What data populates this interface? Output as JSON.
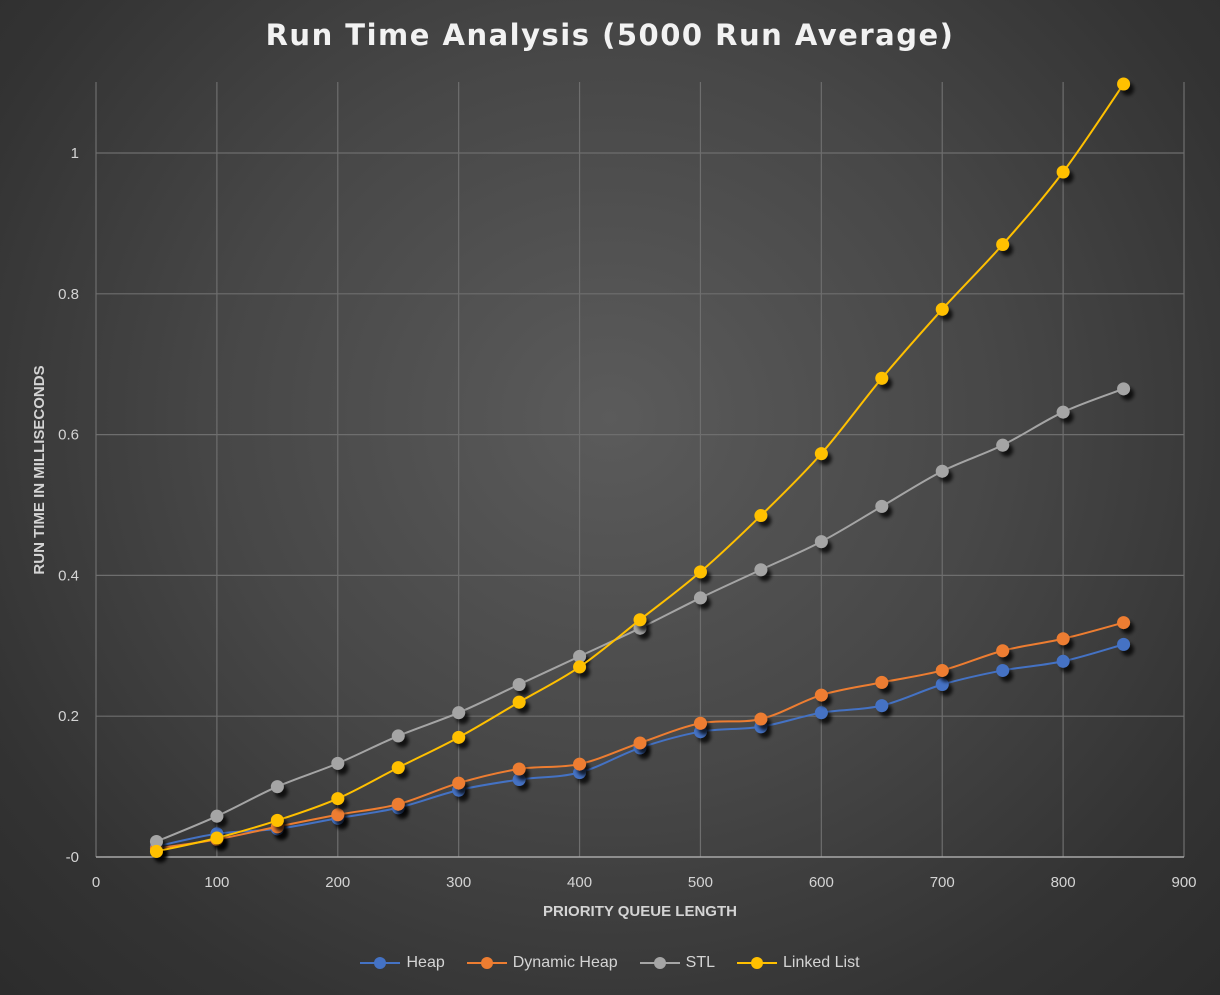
{
  "chart_data": {
    "type": "line",
    "title": "Run Time Analysis (5000 Run Average)",
    "xlabel": "PRIORITY QUEUE LENGTH",
    "ylabel": "RUN TIME IN MILLISECONDS",
    "xlim": [
      0,
      900
    ],
    "ylim": [
      0,
      1.0
    ],
    "x_ticks": [
      {
        "value": 0,
        "label": "0"
      },
      {
        "value": 100,
        "label": "100"
      },
      {
        "value": 200,
        "label": "200"
      },
      {
        "value": 300,
        "label": "300"
      },
      {
        "value": 400,
        "label": "400"
      },
      {
        "value": 500,
        "label": "500"
      },
      {
        "value": 600,
        "label": "600"
      },
      {
        "value": 700,
        "label": "700"
      },
      {
        "value": 800,
        "label": "800"
      },
      {
        "value": 900,
        "label": "900"
      }
    ],
    "y_ticks": [
      {
        "value": 0,
        "label": "-0"
      },
      {
        "value": 0.2,
        "label": "0.2"
      },
      {
        "value": 0.4,
        "label": "0.4"
      },
      {
        "value": 0.6,
        "label": "0.6"
      },
      {
        "value": 0.8,
        "label": "0.8"
      },
      {
        "value": 1.0,
        "label": "1"
      }
    ],
    "grid": true,
    "legend_position": "bottom",
    "x": [
      50,
      100,
      150,
      200,
      250,
      300,
      350,
      400,
      450,
      500,
      550,
      600,
      650,
      700,
      750,
      800,
      850
    ],
    "series": [
      {
        "name": "Heap",
        "color": "#4472c4",
        "values": [
          0.015,
          0.033,
          0.04,
          0.055,
          0.07,
          0.095,
          0.11,
          0.12,
          0.155,
          0.178,
          0.185,
          0.205,
          0.215,
          0.245,
          0.265,
          0.278,
          0.302
        ]
      },
      {
        "name": "Dynamic Heap",
        "color": "#ed7d31",
        "values": [
          0.012,
          0.025,
          0.043,
          0.06,
          0.075,
          0.105,
          0.125,
          0.132,
          0.162,
          0.19,
          0.196,
          0.23,
          0.248,
          0.265,
          0.293,
          0.31,
          0.333
        ]
      },
      {
        "name": "STL",
        "color": "#a5a5a5",
        "values": [
          0.022,
          0.058,
          0.1,
          0.133,
          0.172,
          0.205,
          0.245,
          0.285,
          0.325,
          0.368,
          0.408,
          0.448,
          0.498,
          0.548,
          0.585,
          0.632,
          0.665
        ]
      },
      {
        "name": "Linked List",
        "color": "#ffc000",
        "values": [
          0.008,
          0.027,
          0.052,
          0.083,
          0.127,
          0.17,
          0.22,
          0.27,
          0.337,
          0.405,
          0.485,
          0.573,
          0.68,
          0.778,
          0.87,
          0.973,
          1.098
        ]
      }
    ]
  }
}
